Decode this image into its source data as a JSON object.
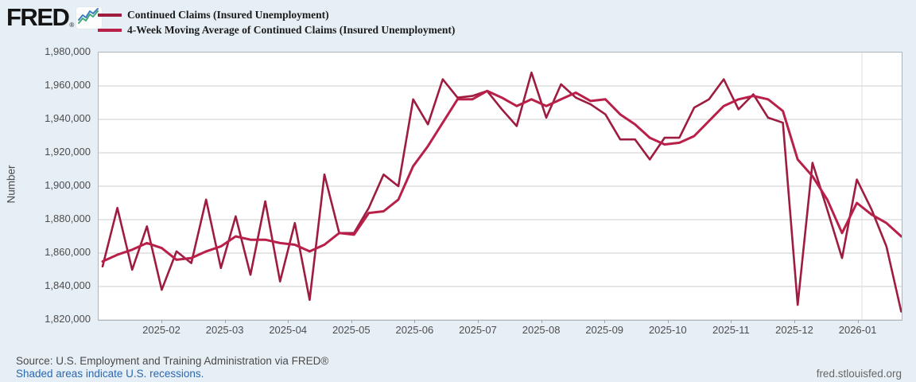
{
  "header": {
    "logo_text": "FRED",
    "registered_mark": "®",
    "logo_icon": "line-chart-icon",
    "logo_icon_colors": {
      "blue": "#3a7fc1",
      "green": "#43a878"
    }
  },
  "legend": [
    {
      "label": "Continued Claims (Insured Unemployment)",
      "color": "#9d1c3f"
    },
    {
      "label": "4-Week Moving Average of Continued Claims (Insured Unemployment)",
      "color": "#b82049"
    }
  ],
  "chart_data": {
    "type": "line",
    "title": "",
    "xlabel": "",
    "ylabel": "Number",
    "ylim": [
      1820000,
      1980000
    ],
    "y_ticks": [
      1980000,
      1960000,
      1940000,
      1920000,
      1900000,
      1880000,
      1860000,
      1840000,
      1820000
    ],
    "y_tick_labels": [
      "1,980,000",
      "1,960,000",
      "1,940,000",
      "1,920,000",
      "1,900,000",
      "1,880,000",
      "1,860,000",
      "1,840,000",
      "1,820,000"
    ],
    "x_tick_labels": [
      "2025-02",
      "2025-03",
      "2025-04",
      "2025-05",
      "2025-06",
      "2025-07",
      "2025-08",
      "2025-09",
      "2025-10",
      "2025-11",
      "2025-12",
      "2026-01"
    ],
    "frequency": "weekly",
    "x_start_date": "2025-01-04",
    "x_end_date": "2026-01-17",
    "grid": "horizontal",
    "year_boundary_gridline": "2026-01",
    "legend_position": "top-left",
    "plot_colors": {
      "background": "#ffffff",
      "gridline": "#cccccc",
      "border": "#aeb6bd",
      "year_line": "#dcdfe3"
    },
    "series": [
      {
        "name": "Continued Claims (Insured Unemployment)",
        "color": "#9d1c3f",
        "stroke_width": 2.6,
        "values": [
          1852000,
          1887000,
          1850000,
          1876000,
          1838000,
          1861000,
          1854000,
          1892000,
          1851000,
          1882000,
          1847000,
          1891000,
          1843000,
          1878000,
          1832000,
          1907000,
          1872000,
          1872000,
          1887000,
          1907000,
          1900000,
          1952000,
          1937000,
          1964000,
          1953000,
          1954000,
          1957000,
          1946000,
          1936000,
          1968000,
          1941000,
          1961000,
          1953000,
          1949000,
          1943000,
          1928000,
          1928000,
          1916000,
          1929000,
          1929000,
          1947000,
          1952000,
          1964000,
          1946000,
          1955000,
          1941000,
          1938000,
          1829000,
          1914000,
          1886000,
          1857000,
          1904000,
          1886000,
          1864000,
          1825000
        ]
      },
      {
        "name": "4-Week Moving Average of Continued Claims (Insured Unemployment)",
        "color": "#b82049",
        "stroke_width": 3,
        "values": [
          1855000,
          1859000,
          1862000,
          1866000,
          1863000,
          1856000,
          1857000,
          1861000,
          1864000,
          1870000,
          1868000,
          1868000,
          1866000,
          1865000,
          1861000,
          1865000,
          1872000,
          1871000,
          1884000,
          1885000,
          1892000,
          1912000,
          1924000,
          1938000,
          1952000,
          1952000,
          1957000,
          1953000,
          1948000,
          1952000,
          1948000,
          1952000,
          1956000,
          1951000,
          1952000,
          1943000,
          1937000,
          1929000,
          1925000,
          1926000,
          1930000,
          1939000,
          1948000,
          1952000,
          1954000,
          1952000,
          1945000,
          1916000,
          1906000,
          1892000,
          1872000,
          1890000,
          1883000,
          1878000,
          1870000
        ]
      }
    ]
  },
  "footer": {
    "source": "Source: U.S. Employment and Training Administration via FRED®",
    "recession_note": "Shaded areas indicate U.S. recessions.",
    "site": "fred.stlouisfed.org"
  }
}
